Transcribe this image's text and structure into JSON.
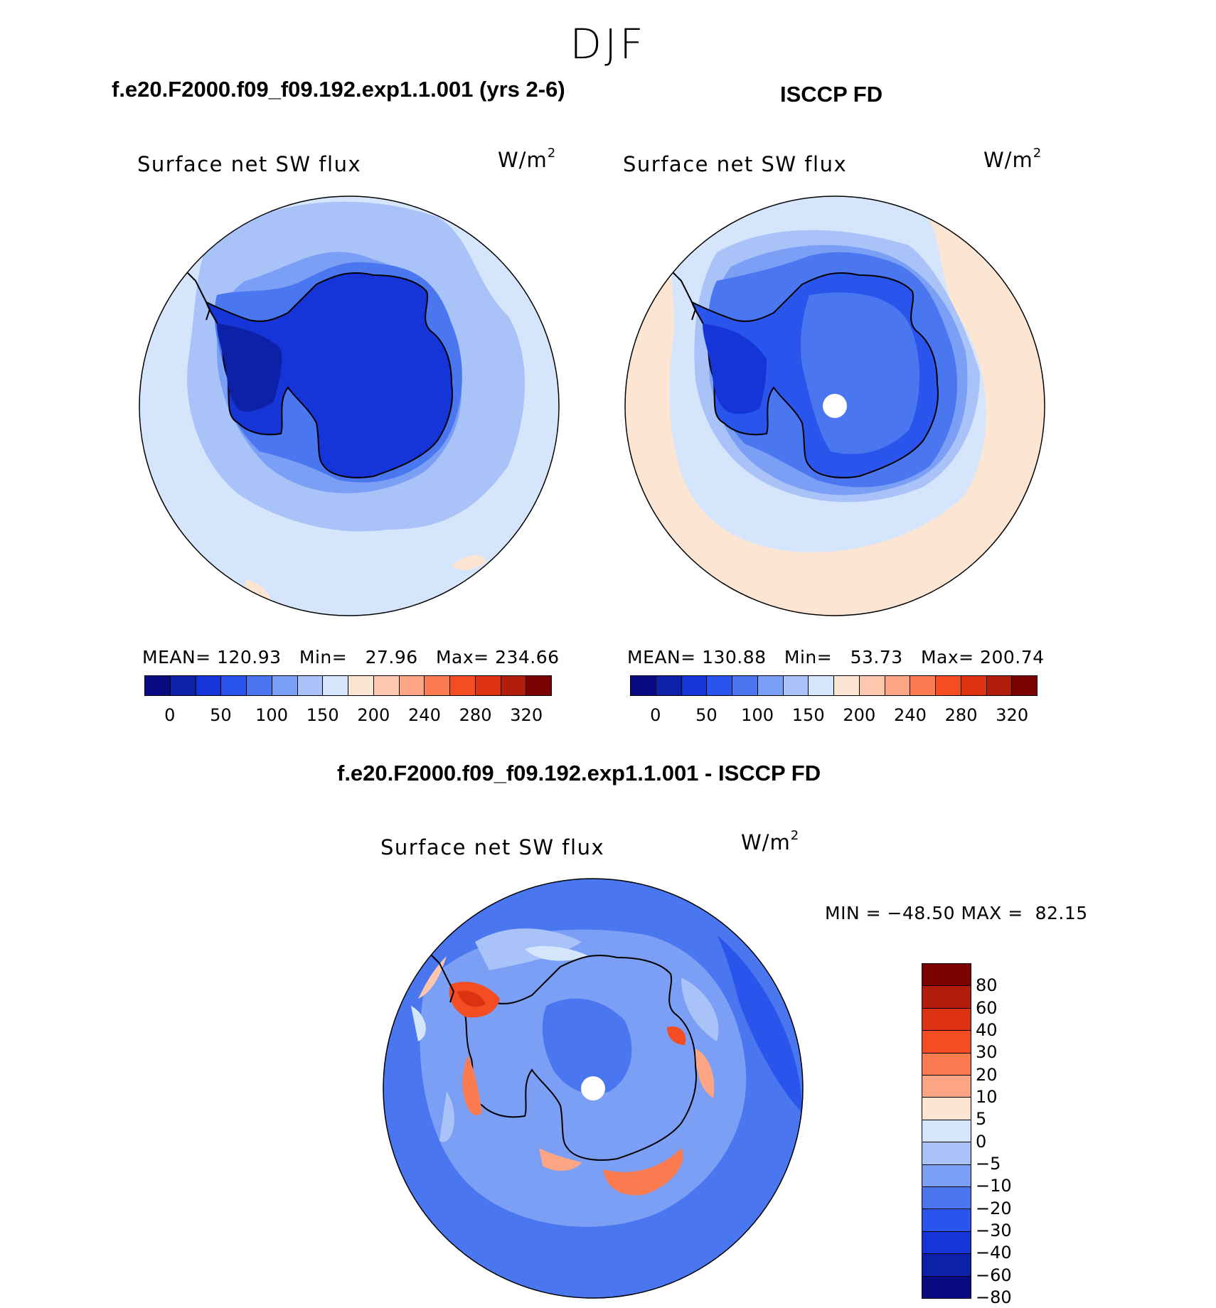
{
  "figure": {
    "season": "DJF",
    "top_left": {
      "case": "f.e20.F2000.f09_f09.192.exp1.1.001 (yrs 2-6)",
      "variable": "Surface net SW flux",
      "units": "W/m",
      "units_exp": "2",
      "mean_label": "MEAN=",
      "mean": "120.93",
      "min_label": "Min=",
      "min": "27.96",
      "max_label": "Max=",
      "max": "234.66"
    },
    "top_right": {
      "case": "ISCCP FD",
      "variable": "Surface net SW flux",
      "units": "W/m",
      "units_exp": "2",
      "mean_label": "MEAN=",
      "mean": "130.88",
      "min_label": "Min=",
      "min": "53.73",
      "max_label": "Max=",
      "max": "200.74"
    },
    "diff": {
      "case": "f.e20.F2000.f09_f09.192.exp1.1.001 - ISCCP FD",
      "variable": "Surface net SW flux",
      "units": "W/m",
      "units_exp": "2",
      "min_label": "MIN =",
      "min": "−48.50",
      "max_label": "MAX =",
      "max": "82.15"
    }
  },
  "colorbars": {
    "abs_colors": [
      "#0a0a82",
      "#0d21a8",
      "#1635d8",
      "#2a55ec",
      "#4a76f0",
      "#7b9ff5",
      "#a9c3f9",
      "#d5e6fc",
      "#fde5d4",
      "#fcc7ad",
      "#fca585",
      "#fa7b50",
      "#f44d24",
      "#dc3212",
      "#b01d0a",
      "#7d0303"
    ],
    "abs_ticks": [
      "0",
      "50",
      "100",
      "150",
      "200",
      "240",
      "280",
      "320"
    ],
    "diff_colors": [
      "#7d0303",
      "#b01d0a",
      "#dc3212",
      "#f44d24",
      "#fa7b50",
      "#fca585",
      "#fde5d4",
      "#d5e6fc",
      "#a9c3f9",
      "#7b9ff5",
      "#4a76f0",
      "#2a55ec",
      "#1635d8",
      "#0d21a8",
      "#0a0a82"
    ],
    "diff_ticks": [
      "80",
      "60",
      "40",
      "30",
      "20",
      "10",
      "5",
      "0",
      "−5",
      "−10",
      "−20",
      "−30",
      "−40",
      "−60",
      "−80"
    ]
  }
}
